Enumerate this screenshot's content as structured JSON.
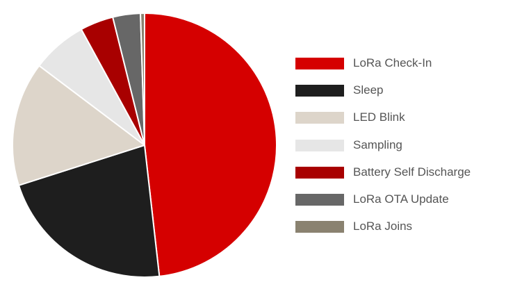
{
  "chart_data": {
    "type": "pie",
    "title": "",
    "legend_position": "right",
    "start_angle_deg": 0,
    "direction": "clockwise",
    "slices": [
      {
        "label": "LoRa Check-In",
        "value": 48.5,
        "color": "#d50000"
      },
      {
        "label": "Sleep",
        "value": 22.0,
        "color": "#1e1e1e"
      },
      {
        "label": "LED Blink",
        "value": 15.3,
        "color": "#ddd5ca"
      },
      {
        "label": "Sampling",
        "value": 6.8,
        "color": "#e6e6e6"
      },
      {
        "label": "Battery Self Discharge",
        "value": 4.1,
        "color": "#a80000"
      },
      {
        "label": "LoRa OTA Update",
        "value": 3.4,
        "color": "#676767"
      },
      {
        "label": "LoRa Joins",
        "value": 0.5,
        "color": "#8a8270"
      }
    ]
  }
}
